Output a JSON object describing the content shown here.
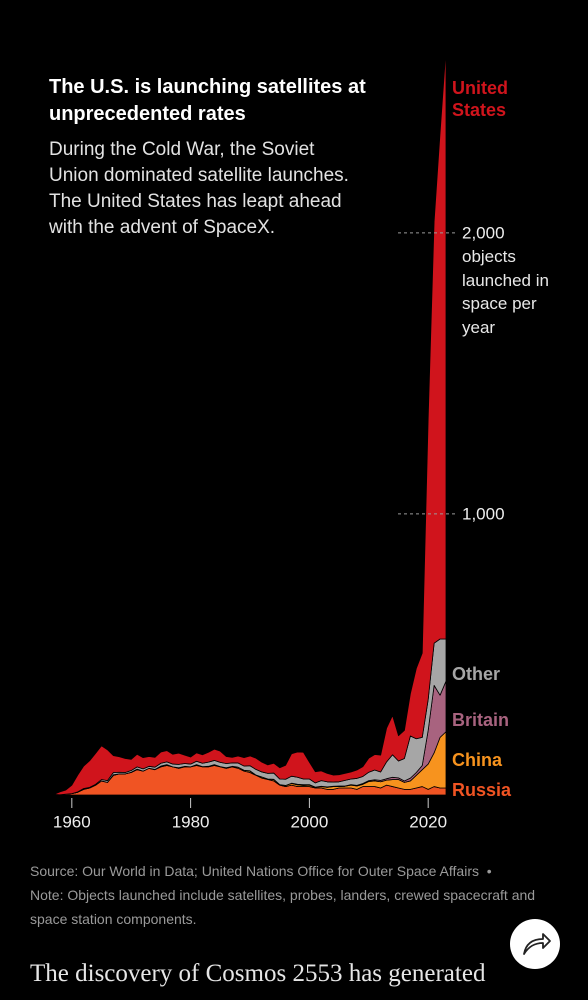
{
  "chart_data": {
    "type": "stacked_area",
    "title": "The U.S. is launching satellites at unprecedented rates",
    "subtitle": "During the Cold War, the Soviet Union dominated satellite launches. The United States has leapt ahead with the advent of SpaceX.",
    "y_label": "objects launched in space per year",
    "source": "Source: Our World in Data; United Nations Office for Outer Space Affairs",
    "separator": "•",
    "note": "Note: Objects launched include satellites, probes, landers, crewed spacecraft and space station components.",
    "x": [
      1957,
      1958,
      1959,
      1960,
      1961,
      1962,
      1963,
      1964,
      1965,
      1966,
      1967,
      1968,
      1969,
      1970,
      1971,
      1972,
      1973,
      1974,
      1975,
      1976,
      1977,
      1978,
      1979,
      1980,
      1981,
      1982,
      1983,
      1984,
      1985,
      1986,
      1987,
      1988,
      1989,
      1990,
      1991,
      1992,
      1993,
      1994,
      1995,
      1996,
      1997,
      1998,
      1999,
      2000,
      2001,
      2002,
      2003,
      2004,
      2005,
      2006,
      2007,
      2008,
      2009,
      2010,
      2011,
      2012,
      2013,
      2014,
      2015,
      2016,
      2017,
      2018,
      2019,
      2020,
      2021,
      2022,
      2023
    ],
    "xlim": [
      1957,
      2023
    ],
    "xticks": [
      1960,
      1980,
      2000,
      2020
    ],
    "ylim": [
      0,
      2750
    ],
    "yticks": [
      {
        "value": 1000,
        "label": "1,000"
      },
      {
        "value": 2000,
        "label": "2,000"
      }
    ],
    "series": [
      {
        "name": "Russia",
        "color": "#f05423",
        "values": [
          2,
          1,
          3,
          5,
          10,
          20,
          25,
          35,
          50,
          45,
          70,
          75,
          75,
          80,
          90,
          85,
          95,
          90,
          100,
          105,
          100,
          95,
          100,
          100,
          105,
          100,
          100,
          105,
          100,
          95,
          100,
          95,
          85,
          80,
          70,
          60,
          55,
          50,
          35,
          30,
          35,
          30,
          30,
          30,
          25,
          25,
          20,
          20,
          25,
          25,
          25,
          20,
          30,
          30,
          30,
          25,
          35,
          30,
          25,
          20,
          20,
          25,
          30,
          20,
          30,
          25,
          25
        ]
      },
      {
        "name": "China",
        "color": "#f7931e",
        "values": [
          0,
          0,
          0,
          0,
          0,
          0,
          0,
          0,
          0,
          0,
          0,
          0,
          0,
          1,
          1,
          0,
          0,
          0,
          3,
          3,
          0,
          2,
          1,
          0,
          3,
          1,
          2,
          3,
          1,
          2,
          2,
          4,
          3,
          5,
          1,
          4,
          2,
          5,
          2,
          4,
          6,
          6,
          4,
          5,
          2,
          5,
          7,
          10,
          5,
          6,
          10,
          12,
          8,
          18,
          20,
          22,
          18,
          25,
          30,
          25,
          30,
          45,
          60,
          90,
          120,
          180,
          200
        ]
      },
      {
        "name": "Britain",
        "color": "#a8637f",
        "values": [
          0,
          0,
          0,
          0,
          0,
          1,
          0,
          0,
          0,
          0,
          2,
          0,
          0,
          0,
          1,
          0,
          0,
          1,
          0,
          0,
          0,
          0,
          1,
          0,
          0,
          0,
          0,
          0,
          0,
          0,
          0,
          0,
          0,
          1,
          0,
          0,
          0,
          1,
          0,
          0,
          1,
          2,
          3,
          2,
          1,
          1,
          2,
          1,
          2,
          1,
          2,
          2,
          3,
          3,
          4,
          5,
          5,
          8,
          6,
          5,
          10,
          10,
          15,
          120,
          240,
          150,
          180
        ]
      },
      {
        "name": "Other",
        "color": "#a6a6a6",
        "values": [
          0,
          0,
          0,
          0,
          1,
          2,
          2,
          3,
          5,
          6,
          8,
          6,
          5,
          6,
          8,
          8,
          7,
          8,
          10,
          10,
          10,
          12,
          10,
          10,
          12,
          12,
          15,
          15,
          15,
          15,
          12,
          15,
          15,
          18,
          20,
          18,
          20,
          22,
          20,
          22,
          25,
          25,
          20,
          20,
          15,
          20,
          18,
          15,
          15,
          20,
          20,
          25,
          25,
          30,
          35,
          30,
          60,
          80,
          60,
          80,
          150,
          120,
          100,
          110,
          150,
          200,
          150
        ]
      },
      {
        "name": "United States",
        "color": "#d0141c",
        "values": [
          0,
          10,
          15,
          30,
          60,
          80,
          95,
          110,
          120,
          110,
          60,
          55,
          50,
          40,
          45,
          40,
          35,
          35,
          40,
          40,
          35,
          40,
          30,
          25,
          30,
          30,
          35,
          40,
          40,
          25,
          20,
          25,
          30,
          35,
          40,
          35,
          30,
          35,
          40,
          50,
          80,
          90,
          95,
          60,
          40,
          35,
          30,
          25,
          25,
          25,
          25,
          30,
          35,
          50,
          55,
          60,
          120,
          140,
          90,
          100,
          150,
          250,
          300,
          1000,
          1500,
          1800,
          2100
        ]
      }
    ]
  },
  "article": {
    "text": "The discovery of Cosmos 2553 has generated"
  }
}
